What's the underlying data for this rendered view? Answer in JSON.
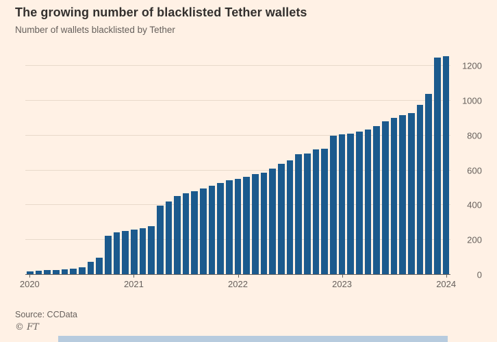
{
  "chart_data": {
    "type": "bar",
    "title": "The growing number of blacklisted Tether wallets",
    "subtitle": "Number of wallets blacklisted by Tether",
    "categories": [
      "Jan 2020",
      "Feb 2020",
      "Mar 2020",
      "Apr 2020",
      "May 2020",
      "Jun 2020",
      "Jul 2020",
      "Aug 2020",
      "Sep 2020",
      "Oct 2020",
      "Nov 2020",
      "Dec 2020",
      "Jan 2021",
      "Feb 2021",
      "Mar 2021",
      "Apr 2021",
      "May 2021",
      "Jun 2021",
      "Jul 2021",
      "Aug 2021",
      "Sep 2021",
      "Oct 2021",
      "Nov 2021",
      "Dec 2021",
      "Jan 2022",
      "Feb 2022",
      "Mar 2022",
      "Apr 2022",
      "May 2022",
      "Jun 2022",
      "Jul 2022",
      "Aug 2022",
      "Sep 2022",
      "Oct 2022",
      "Nov 2022",
      "Dec 2022",
      "Jan 2023",
      "Feb 2023",
      "Mar 2023",
      "Apr 2023",
      "May 2023",
      "Jun 2023",
      "Jul 2023",
      "Aug 2023",
      "Sep 2023",
      "Oct 2023",
      "Nov 2023",
      "Dec 2023",
      "Jan 2024"
    ],
    "values": [
      15,
      18,
      22,
      25,
      28,
      32,
      40,
      70,
      95,
      220,
      240,
      250,
      255,
      265,
      275,
      395,
      420,
      450,
      465,
      480,
      495,
      510,
      525,
      540,
      550,
      560,
      575,
      585,
      610,
      635,
      655,
      690,
      695,
      720,
      725,
      800,
      805,
      812,
      820,
      835,
      855,
      880,
      900,
      915,
      930,
      975,
      1040,
      1250,
      1255
    ],
    "ylim": [
      0,
      1300
    ],
    "yticks": [
      0,
      200,
      400,
      600,
      800,
      1000,
      1200
    ],
    "xticks": [
      {
        "label": "2020",
        "index": 0
      },
      {
        "label": "2021",
        "index": 12
      },
      {
        "label": "2022",
        "index": 24
      },
      {
        "label": "2023",
        "index": 36
      },
      {
        "label": "2024",
        "index": 48
      }
    ],
    "grid": true,
    "legend": false,
    "ylabel_side": "right",
    "bar_color": "#1B5A8D",
    "background_color": "#FFF1E5",
    "gridline_color": "#E8D9CA"
  },
  "footer": {
    "source": "Source: CCData",
    "copyright": "© FT"
  }
}
